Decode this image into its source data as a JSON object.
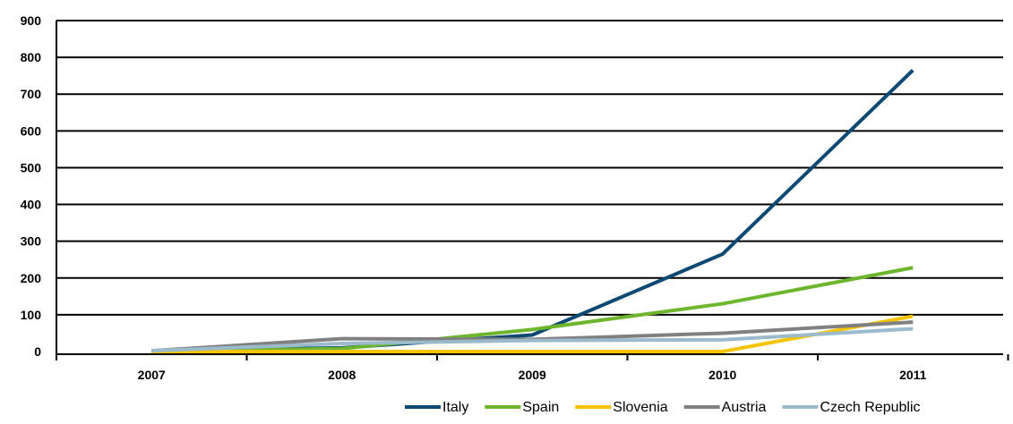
{
  "chart_data": {
    "type": "line",
    "title": "",
    "xlabel": "",
    "ylabel": "",
    "categories": [
      "2007",
      "2008",
      "2009",
      "2010",
      "2011"
    ],
    "ylim": [
      0,
      900
    ],
    "yticks": [
      0,
      100,
      200,
      300,
      400,
      500,
      600,
      700,
      800,
      900
    ],
    "grid": "horizontal",
    "legend_position": "bottom-right",
    "series": [
      {
        "name": "Italy",
        "color": "#0d4a73",
        "values": [
          2,
          10,
          45,
          265,
          765
        ]
      },
      {
        "name": "Spain",
        "color": "#6cb52d",
        "values": [
          2,
          8,
          60,
          130,
          228
        ]
      },
      {
        "name": "Slovenia",
        "color": "#f5c400",
        "values": [
          0,
          0,
          0,
          0,
          96
        ]
      },
      {
        "name": "Austria",
        "color": "#808080",
        "values": [
          2,
          35,
          33,
          50,
          80
        ]
      },
      {
        "name": "Czech Republic",
        "color": "#9bbbcc",
        "values": [
          2,
          22,
          30,
          32,
          62
        ]
      }
    ]
  }
}
